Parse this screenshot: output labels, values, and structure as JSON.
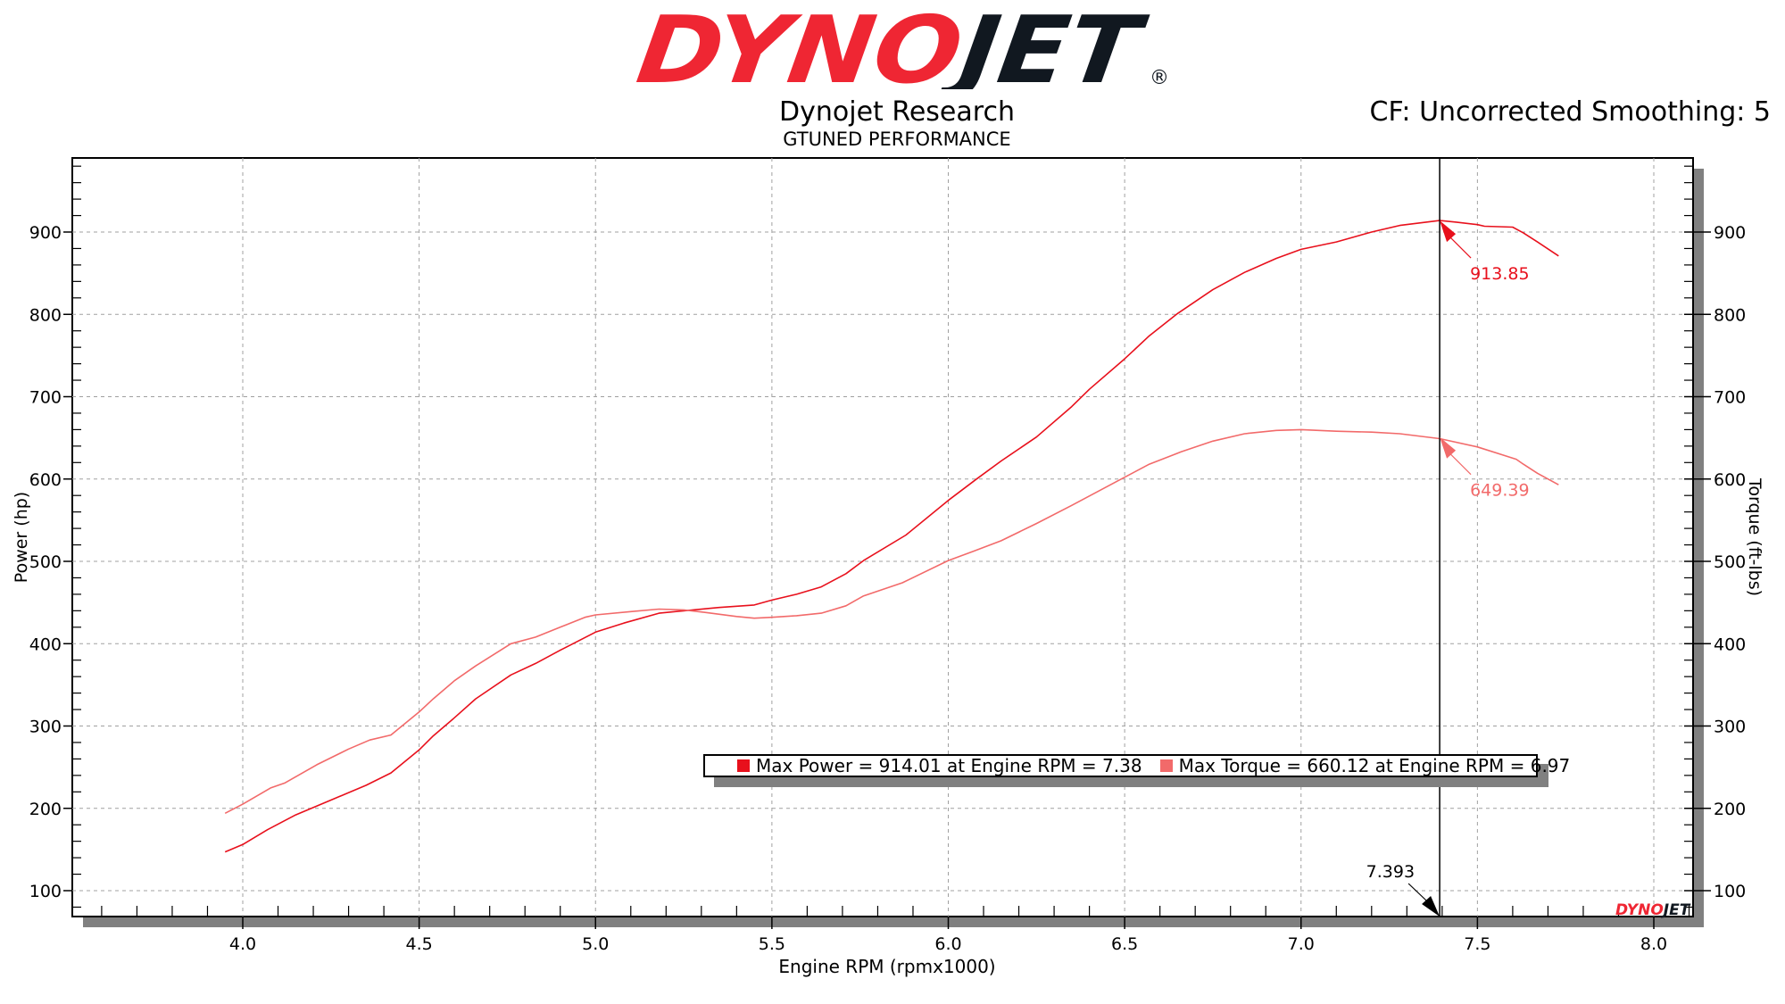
{
  "header": {
    "logo_text_red": "DYNO",
    "logo_text_black": "JET",
    "logo_registered": "®",
    "title": "Dynojet Research",
    "subtitle": "GTUNED PERFORMANCE",
    "correction_info": "CF: Uncorrected Smoothing: 5"
  },
  "colors": {
    "power": "#e8101c",
    "torque": "#f26a6a",
    "logo_red": "#ef2633",
    "logo_black": "#111820",
    "grid": "#a0a0a0",
    "shadow": "#808080"
  },
  "legend": {
    "power_label": "Max Power = 914.01 at Engine RPM = 7.38",
    "torque_label": "Max Torque = 660.12 at Engine RPM = 6.97"
  },
  "cursor": {
    "rpm": 7.393,
    "label": "7.393",
    "power_label": "913.85",
    "torque_label": "649.39"
  },
  "chart_data": {
    "type": "line",
    "title": "Dynojet Research - GTUNED PERFORMANCE",
    "xlabel": "Engine RPM (rpmx1000)",
    "ylabel": "Power (hp)",
    "y2label": "Torque (ft-lbs)",
    "xlim": [
      3.52,
      8.11
    ],
    "ylim": [
      68,
      990
    ],
    "x_ticks": [
      4.0,
      4.5,
      5.0,
      5.5,
      6.0,
      6.5,
      7.0,
      7.5,
      8.0
    ],
    "x_tick_labels": [
      "4.0",
      "4.5",
      "5.0",
      "5.5",
      "6.0",
      "6.5",
      "7.0",
      "7.5",
      "8.0"
    ],
    "y_ticks": [
      100,
      200,
      300,
      400,
      500,
      600,
      700,
      800,
      900
    ],
    "y_tick_labels": [
      "100",
      "200",
      "300",
      "400",
      "500",
      "600",
      "700",
      "800",
      "900"
    ],
    "grid": true,
    "legend_position": "inside-bottom",
    "series": [
      {
        "name": "Power (hp)",
        "axis": "left",
        "max": 914.01,
        "max_rpm": 7.38,
        "x": [
          3.95,
          4.0,
          4.07,
          4.15,
          4.25,
          4.35,
          4.42,
          4.5,
          4.54,
          4.6,
          4.66,
          4.76,
          4.83,
          4.9,
          5.0,
          5.08,
          5.18,
          5.25,
          5.35,
          5.45,
          5.5,
          5.57,
          5.64,
          5.71,
          5.76,
          5.88,
          6.0,
          6.08,
          6.15,
          6.25,
          6.35,
          6.4,
          6.5,
          6.57,
          6.65,
          6.75,
          6.84,
          6.93,
          7.0,
          7.1,
          7.2,
          7.28,
          7.393,
          7.44,
          7.5,
          7.52,
          7.6,
          7.63,
          7.67,
          7.73
        ],
        "values": [
          147,
          156,
          174,
          192,
          210,
          228,
          243,
          271,
          288,
          310,
          333,
          362,
          376,
          392,
          414,
          425,
          437,
          440,
          444,
          447,
          453,
          460,
          469,
          485,
          501,
          532,
          574,
          600,
          622,
          651,
          688,
          709,
          746,
          774,
          801,
          830,
          851,
          868,
          879,
          888,
          900,
          908,
          914,
          912,
          909,
          907,
          906,
          899,
          888,
          871
        ]
      },
      {
        "name": "Torque (ft-lbs)",
        "axis": "right",
        "max": 660.12,
        "max_rpm": 6.97,
        "x": [
          3.95,
          4.0,
          4.08,
          4.12,
          4.21,
          4.3,
          4.36,
          4.42,
          4.5,
          4.54,
          4.6,
          4.66,
          4.76,
          4.83,
          4.9,
          4.97,
          5.0,
          5.1,
          5.18,
          5.25,
          5.31,
          5.4,
          5.45,
          5.5,
          5.57,
          5.64,
          5.71,
          5.76,
          5.87,
          6.0,
          6.07,
          6.15,
          6.25,
          6.35,
          6.49,
          6.57,
          6.66,
          6.75,
          6.84,
          6.93,
          7.0,
          7.1,
          7.2,
          7.28,
          7.393,
          7.5,
          7.61,
          7.63,
          7.67,
          7.73
        ],
        "values": [
          194,
          205,
          225,
          231,
          253,
          272,
          283,
          289,
          317,
          333,
          355,
          373,
          400,
          408,
          420,
          432,
          435,
          439,
          442,
          441,
          438,
          433,
          431,
          432,
          434,
          437,
          446,
          458,
          474,
          501,
          512,
          525,
          546,
          568,
          600,
          618,
          633,
          646,
          655,
          659,
          660,
          658,
          657,
          655,
          649,
          639,
          624,
          618,
          607,
          593
        ]
      }
    ]
  }
}
